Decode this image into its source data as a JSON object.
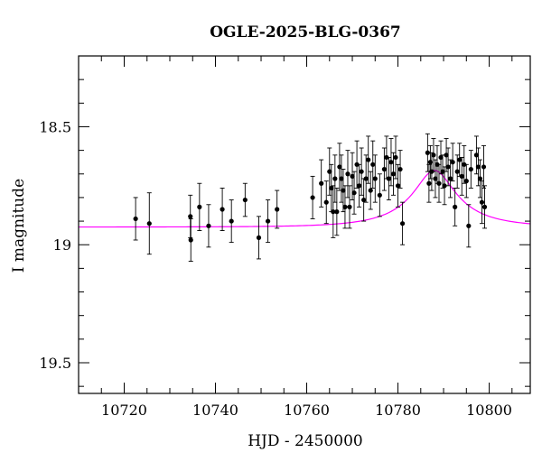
{
  "chart_data": {
    "type": "scatter",
    "title": "OGLE-2025-BLG-0367",
    "xlabel": "HJD - 2450000",
    "ylabel": "I magnitude",
    "xlim": [
      10710,
      10809
    ],
    "ylim": [
      19.63,
      18.2
    ],
    "y_inverted": true,
    "x_ticks": [
      10720,
      10740,
      10760,
      10780,
      10800
    ],
    "x_tick_labels": [
      "10720",
      "10740",
      "10760",
      "10780",
      "10800"
    ],
    "x_minor_step": 5,
    "y_ticks": [
      18.5,
      19,
      19.5
    ],
    "y_tick_labels": [
      "18.5",
      "19",
      "19.5"
    ],
    "y_minor_step": 0.1,
    "grid": false,
    "colors": {
      "points": "#000000",
      "model": "#ff00ff",
      "frame": "#000000"
    },
    "series": [
      {
        "kind": "points_with_errorbars",
        "points": [
          [
            10722.5,
            18.89,
            0.09
          ],
          [
            10725.5,
            18.91,
            0.13
          ],
          [
            10734.5,
            18.88,
            0.09
          ],
          [
            10734.6,
            18.98,
            0.09
          ],
          [
            10736.5,
            18.84,
            0.1
          ],
          [
            10738.5,
            18.92,
            0.09
          ],
          [
            10741.5,
            18.85,
            0.09
          ],
          [
            10743.5,
            18.9,
            0.09
          ],
          [
            10746.5,
            18.81,
            0.07
          ],
          [
            10749.5,
            18.97,
            0.09
          ],
          [
            10751.5,
            18.9,
            0.09
          ],
          [
            10753.5,
            18.85,
            0.08
          ],
          [
            10761.3,
            18.8,
            0.09
          ],
          [
            10763.2,
            18.74,
            0.1
          ],
          [
            10764.3,
            18.82,
            0.09
          ],
          [
            10765.0,
            18.69,
            0.1
          ],
          [
            10765.4,
            18.76,
            0.1
          ],
          [
            10765.8,
            18.86,
            0.11
          ],
          [
            10766.2,
            18.72,
            0.1
          ],
          [
            10766.6,
            18.86,
            0.1
          ],
          [
            10767.2,
            18.67,
            0.1
          ],
          [
            10767.6,
            18.72,
            0.1
          ],
          [
            10768.0,
            18.77,
            0.09
          ],
          [
            10768.4,
            18.84,
            0.09
          ],
          [
            10769.0,
            18.7,
            0.1
          ],
          [
            10769.4,
            18.84,
            0.09
          ],
          [
            10770.0,
            18.71,
            0.1
          ],
          [
            10770.4,
            18.78,
            0.09
          ],
          [
            10771.0,
            18.66,
            0.1
          ],
          [
            10771.5,
            18.75,
            0.09
          ],
          [
            10772.0,
            18.69,
            0.1
          ],
          [
            10772.5,
            18.81,
            0.09
          ],
          [
            10773.0,
            18.72,
            0.1
          ],
          [
            10773.5,
            18.64,
            0.1
          ],
          [
            10774.0,
            18.77,
            0.08
          ],
          [
            10774.5,
            18.66,
            0.1
          ],
          [
            10775.0,
            18.72,
            0.1
          ],
          [
            10776.0,
            18.79,
            0.09
          ],
          [
            10777.0,
            18.68,
            0.09
          ],
          [
            10777.5,
            18.63,
            0.09
          ],
          [
            10778.0,
            18.72,
            0.09
          ],
          [
            10778.5,
            18.65,
            0.1
          ],
          [
            10779.0,
            18.7,
            0.09
          ],
          [
            10779.5,
            18.63,
            0.09
          ],
          [
            10780.0,
            18.75,
            0.09
          ],
          [
            10780.5,
            18.68,
            0.08
          ],
          [
            10781.0,
            18.91,
            0.09
          ],
          [
            10786.5,
            18.61,
            0.08
          ],
          [
            10786.8,
            18.74,
            0.08
          ],
          [
            10787.1,
            18.65,
            0.07
          ],
          [
            10787.4,
            18.69,
            0.08
          ],
          [
            10787.8,
            18.62,
            0.07
          ],
          [
            10788.2,
            18.72,
            0.08
          ],
          [
            10788.6,
            18.66,
            0.08
          ],
          [
            10789.0,
            18.74,
            0.08
          ],
          [
            10789.4,
            18.63,
            0.07
          ],
          [
            10789.8,
            18.69,
            0.07
          ],
          [
            10790.2,
            18.75,
            0.08
          ],
          [
            10790.6,
            18.62,
            0.07
          ],
          [
            10791.0,
            18.67,
            0.08
          ],
          [
            10791.5,
            18.72,
            0.08
          ],
          [
            10792.0,
            18.65,
            0.08
          ],
          [
            10792.5,
            18.84,
            0.08
          ],
          [
            10793.0,
            18.69,
            0.07
          ],
          [
            10793.5,
            18.64,
            0.07
          ],
          [
            10794.0,
            18.71,
            0.08
          ],
          [
            10794.5,
            18.66,
            0.08
          ],
          [
            10795.0,
            18.73,
            0.07
          ],
          [
            10795.5,
            18.92,
            0.09
          ],
          [
            10796.0,
            18.68,
            0.08
          ],
          [
            10797.2,
            18.62,
            0.08
          ],
          [
            10797.6,
            18.67,
            0.08
          ],
          [
            10798.0,
            18.72,
            0.08
          ],
          [
            10798.4,
            18.82,
            0.09
          ],
          [
            10798.8,
            18.67,
            0.09
          ],
          [
            10799.0,
            18.84,
            0.09
          ]
        ]
      },
      {
        "kind": "model_curve",
        "t0": 10788,
        "tE": 14,
        "u0": 0.33,
        "m_baseline": 18.925,
        "m_peak": 18.685,
        "x_range": [
          10710,
          10809
        ]
      }
    ]
  }
}
